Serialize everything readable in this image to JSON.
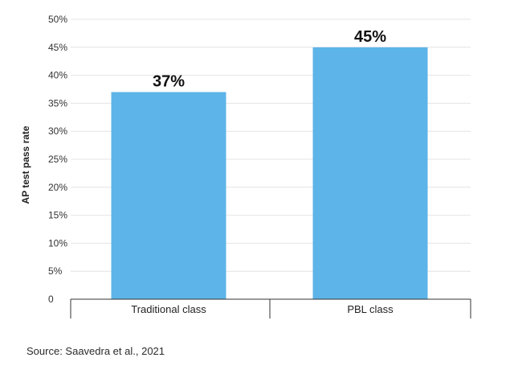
{
  "chart_data": {
    "type": "bar",
    "categories": [
      "Traditional class",
      "PBL class"
    ],
    "values": [
      37,
      45
    ],
    "value_labels": [
      "37%",
      "45%"
    ],
    "title": "",
    "xlabel": "",
    "ylabel": "AP test pass rate",
    "ylim": [
      0,
      50
    ],
    "yticks": [
      0,
      5,
      10,
      15,
      20,
      25,
      30,
      35,
      40,
      45,
      50
    ],
    "ytick_labels": [
      "0",
      "5%",
      "10%",
      "15%",
      "20%",
      "25%",
      "30%",
      "35%",
      "40%",
      "45%",
      "50%"
    ],
    "grid": true,
    "legend": "none",
    "bar_color": "#5db4e8",
    "grid_color": "#e4e4e4",
    "axis_color": "#333333"
  },
  "source_text": "Source: Saavedra et al., 2021"
}
